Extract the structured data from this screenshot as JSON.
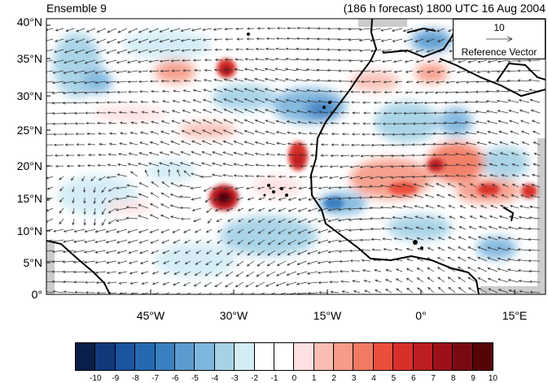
{
  "title_left": "Ensemble 9",
  "title_right": "(186 h forecast) 1800 UTC 16 Aug 2004",
  "y_labels": [
    "40°N",
    "35°N",
    "30°N",
    "25°N",
    "20°N",
    "15°N",
    "10°N",
    "5°N",
    "0°"
  ],
  "x_labels": [
    "45°W",
    "30°W",
    "15°W",
    "0°",
    "15°E"
  ],
  "reference_vector": {
    "magnitude": "10",
    "label": "Reference Vector"
  },
  "colorbar": {
    "labels": [
      "-10",
      "-9",
      "-8",
      "-7",
      "-6",
      "-5",
      "-4",
      "-3",
      "-2",
      "-1",
      "0",
      "1",
      "2",
      "3",
      "4",
      "5",
      "6",
      "7",
      "8",
      "9",
      "10"
    ],
    "colors": [
      "#0a1f4a",
      "#123a7a",
      "#1a55a0",
      "#2569b0",
      "#3a7fc0",
      "#5b9bd0",
      "#7fb6de",
      "#a6d2e6",
      "#d3ecf6",
      "#ffffff",
      "#ffffff",
      "#fde0e0",
      "#f9bdb3",
      "#f69b88",
      "#f27a62",
      "#ea4f3c",
      "#d7302b",
      "#bd1e22",
      "#9e1018",
      "#7a0a12",
      "#570408"
    ]
  },
  "colors": {
    "land_line": "#000000",
    "missing": "#cccccc"
  }
}
